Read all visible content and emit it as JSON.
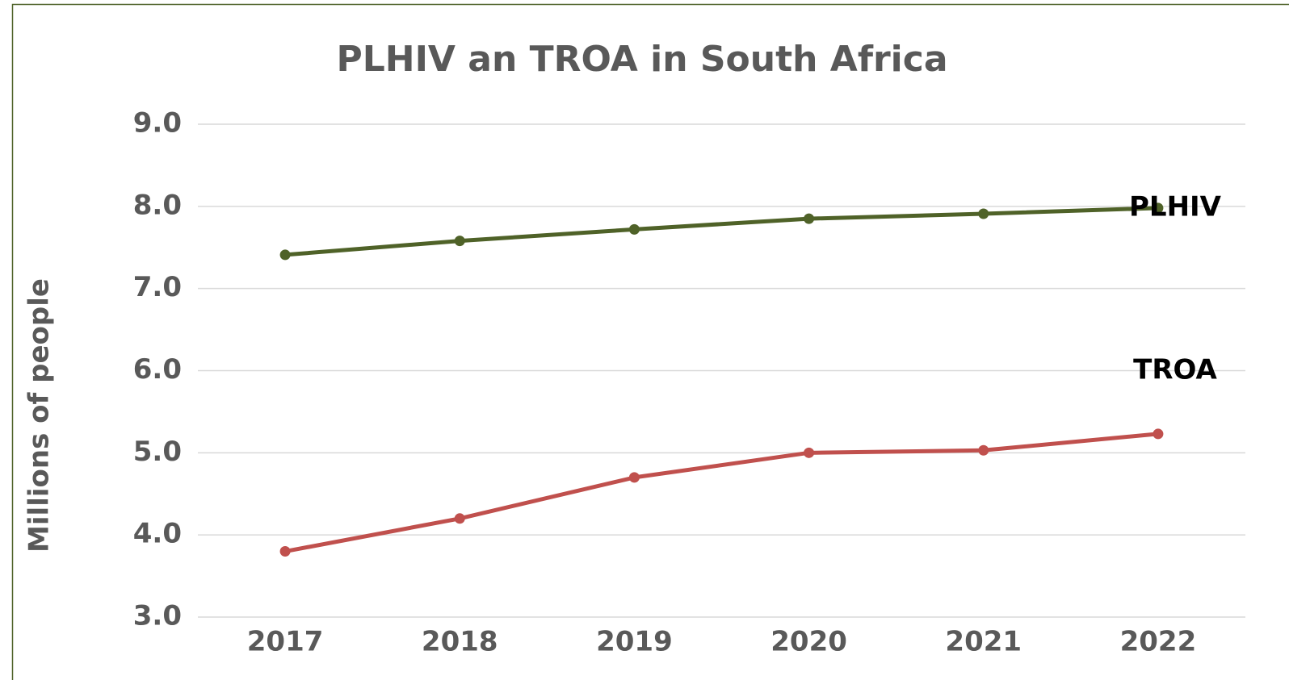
{
  "chart_data": {
    "type": "line",
    "title": "PLHIV an TROA in South Africa",
    "y_label": "Millions of people",
    "categories": [
      "2017",
      "2018",
      "2019",
      "2020",
      "2021",
      "2022"
    ],
    "series": [
      {
        "name": "PLHIV",
        "color": "#4f6228",
        "values": [
          7.41,
          7.58,
          7.72,
          7.85,
          7.91,
          7.98
        ]
      },
      {
        "name": "TROA",
        "color": "#c0504d",
        "values": [
          3.8,
          4.2,
          4.7,
          5.0,
          5.03,
          5.23
        ]
      }
    ],
    "ylim": [
      3,
      9
    ],
    "yticks": [
      {
        "value": 3,
        "label": "3.0"
      },
      {
        "value": 4,
        "label": "4.0"
      },
      {
        "value": 5,
        "label": "5.0"
      },
      {
        "value": 6,
        "label": "6.0"
      },
      {
        "value": 7,
        "label": "7.0"
      },
      {
        "value": 8,
        "label": "8.0"
      },
      {
        "value": 9,
        "label": "9.0"
      }
    ],
    "grid": true
  }
}
